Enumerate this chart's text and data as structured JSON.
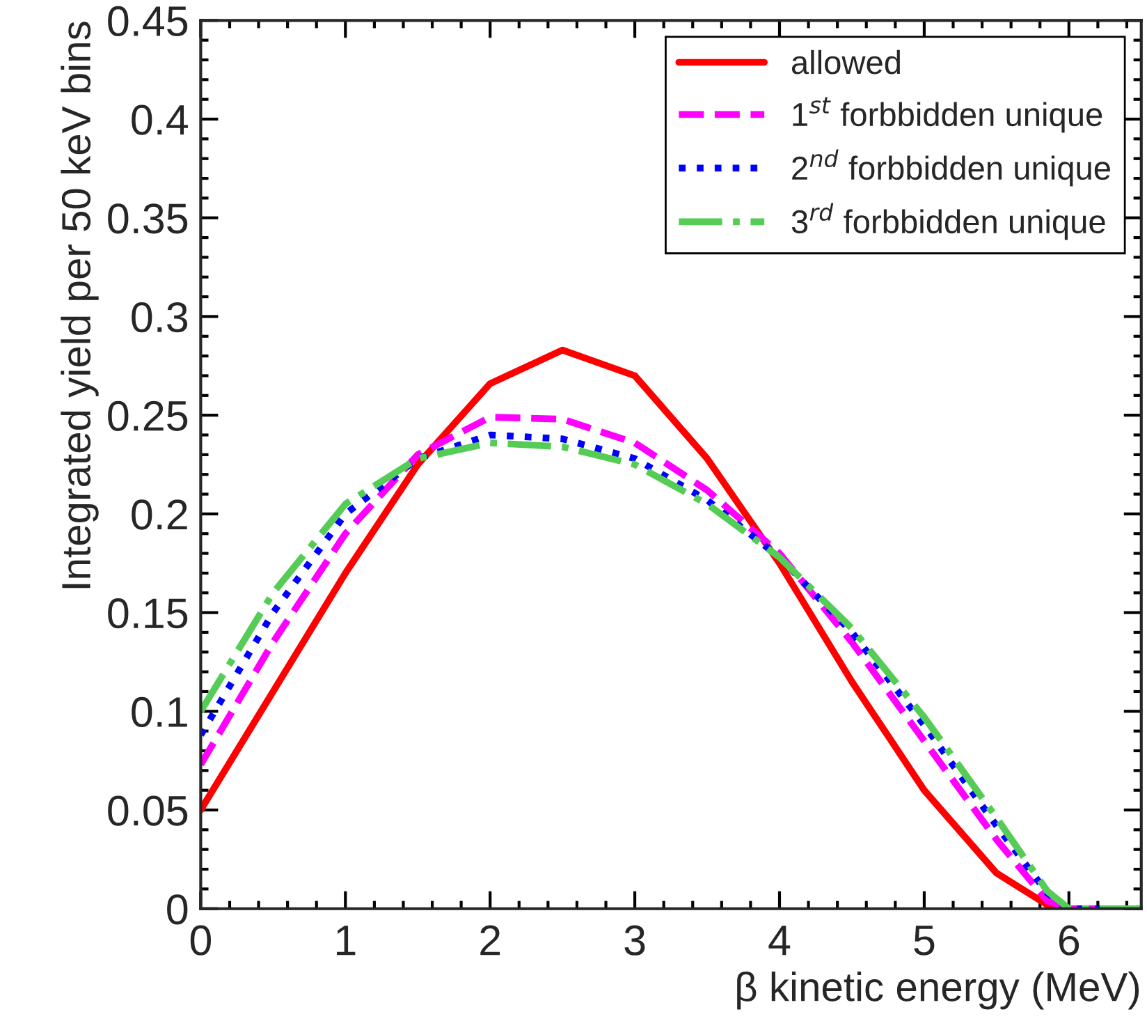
{
  "chart_data": {
    "type": "line",
    "xlabel": "β kinetic energy (MeV)",
    "ylabel": "Integrated yield per 50 keV bins",
    "xlim": [
      0,
      6.5
    ],
    "ylim": [
      0,
      0.45
    ],
    "xticks": [
      0,
      1,
      2,
      3,
      4,
      5,
      6
    ],
    "yticks": [
      0,
      0.05,
      0.1,
      0.15,
      0.2,
      0.25,
      0.3,
      0.35,
      0.4,
      0.45
    ],
    "grid": false,
    "legend": "top right",
    "marker": "none",
    "x": [
      0,
      0.5,
      1,
      1.5,
      2,
      2.5,
      3,
      3.5,
      4,
      4.5,
      5,
      5.5,
      5.85,
      6,
      6.5
    ],
    "series": [
      {
        "name": "allowed",
        "color": "#ff0000",
        "line_style": "solid",
        "values": [
          0.05,
          0.11,
          0.17,
          0.225,
          0.266,
          0.283,
          0.27,
          0.228,
          0.175,
          0.115,
          0.06,
          0.018,
          0.002,
          0,
          0
        ]
      },
      {
        "name": "1$^{st}$ forbbidden unique",
        "color": "#ff00ff",
        "line_style": "dashed",
        "values": [
          0.073,
          0.135,
          0.19,
          0.23,
          0.249,
          0.248,
          0.236,
          0.212,
          0.18,
          0.135,
          0.085,
          0.035,
          0.004,
          0,
          0
        ]
      },
      {
        "name": "2$^{nd}$ forbbidden unique",
        "color": "#0000ff",
        "line_style": "dotted",
        "values": [
          0.088,
          0.15,
          0.2,
          0.228,
          0.24,
          0.238,
          0.228,
          0.207,
          0.178,
          0.14,
          0.093,
          0.042,
          0.008,
          0,
          0
        ]
      },
      {
        "name": "3$^{rd}$ forbbidden unique",
        "color": "#55cc55",
        "line_style": "dashdot",
        "values": [
          0.1,
          0.16,
          0.205,
          0.228,
          0.236,
          0.234,
          0.225,
          0.205,
          0.178,
          0.142,
          0.097,
          0.046,
          0.009,
          0,
          0
        ]
      }
    ]
  }
}
